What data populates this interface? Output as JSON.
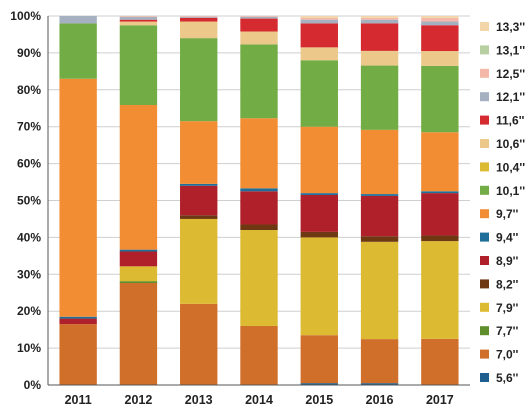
{
  "chart_data": {
    "type": "bar",
    "stacked": true,
    "normalized": true,
    "categories": [
      "2011",
      "2012",
      "2013",
      "2014",
      "2015",
      "2016",
      "2017"
    ],
    "ylim": [
      0,
      100
    ],
    "yticks": [
      0,
      10,
      20,
      30,
      40,
      50,
      60,
      70,
      80,
      90,
      100
    ],
    "ytick_labels": [
      "0%",
      "10%",
      "20%",
      "30%",
      "40%",
      "50%",
      "60%",
      "70%",
      "80%",
      "90%",
      "100%"
    ],
    "grid": true,
    "legend_position": "right",
    "series": [
      {
        "name": "5,6''",
        "color": "#1f5f8f",
        "values": [
          0,
          0,
          0,
          0,
          0.5,
          0.5,
          0
        ]
      },
      {
        "name": "7,0''",
        "color": "#d06f2a",
        "values": [
          16.5,
          27.5,
          22,
          16,
          13,
          12,
          12.5
        ]
      },
      {
        "name": "7,7''",
        "color": "#5e8f2a",
        "values": [
          0,
          0.5,
          0,
          0,
          0,
          0,
          0
        ]
      },
      {
        "name": "7,9''",
        "color": "#dcbb32",
        "values": [
          0,
          4,
          23,
          26,
          26.5,
          26.5,
          26.5
        ]
      },
      {
        "name": "8,2''",
        "color": "#6e3812",
        "values": [
          0,
          0,
          1,
          1.5,
          1.5,
          1.5,
          1.5
        ]
      },
      {
        "name": "8,9''",
        "color": "#b0202a",
        "values": [
          1.5,
          4,
          8,
          9,
          10,
          11,
          11.5
        ]
      },
      {
        "name": "9,4''",
        "color": "#1f6e9a",
        "values": [
          0.5,
          0.5,
          0.5,
          0.8,
          0.5,
          0.5,
          0.5
        ]
      },
      {
        "name": "9,7''",
        "color": "#f28d34",
        "values": [
          64.5,
          39,
          17,
          19,
          18,
          17.5,
          16
        ]
      },
      {
        "name": "10,1''",
        "color": "#72ac44",
        "values": [
          15,
          21.5,
          22.5,
          20,
          18,
          17.5,
          18
        ]
      },
      {
        "name": "10,4''",
        "color": "#dcbb32",
        "values": [
          0,
          0,
          0,
          0,
          0,
          0,
          0
        ]
      },
      {
        "name": "10,6''",
        "color": "#ecc98a",
        "values": [
          0,
          1,
          4.5,
          3.5,
          3.5,
          4,
          4
        ]
      },
      {
        "name": "11,6''",
        "color": "#d42a30",
        "values": [
          0,
          0.5,
          1,
          3.5,
          6.5,
          7.5,
          7
        ]
      },
      {
        "name": "12,1''",
        "color": "#a5b0c1",
        "values": [
          2,
          0.8,
          0.3,
          0.5,
          1,
          1,
          1
        ]
      },
      {
        "name": "12,5''",
        "color": "#f4b8a8",
        "values": [
          0,
          0.2,
          0.2,
          0.2,
          0.5,
          0.5,
          1
        ]
      },
      {
        "name": "13,1''",
        "color": "#b8cfa2",
        "values": [
          0,
          0,
          0,
          0,
          0,
          0,
          0
        ]
      },
      {
        "name": "13,3''",
        "color": "#f2d6a9",
        "values": [
          0,
          0,
          0,
          0,
          0.5,
          0.5,
          0.5
        ]
      }
    ]
  }
}
